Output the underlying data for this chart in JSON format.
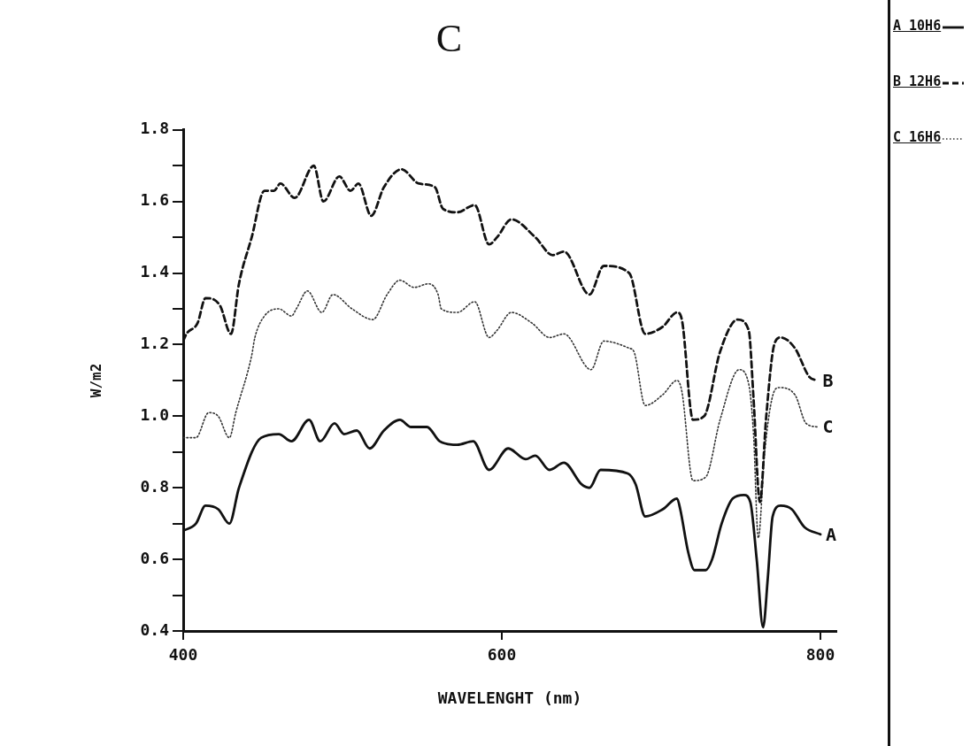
{
  "chart_data": {
    "type": "line",
    "title": "C",
    "xlabel": "WAVELENGHT (nm)",
    "ylabel": "W/m2",
    "xlim": [
      400,
      810
    ],
    "xticks": [
      400,
      600,
      800
    ],
    "ylim": [
      0.4,
      1.8
    ],
    "yticks": [
      {
        "value": 0.4,
        "label": "0.4"
      },
      {
        "value": 0.5,
        "label": null
      },
      {
        "value": 0.6,
        "label": "0.6"
      },
      {
        "value": 0.7,
        "label": null
      },
      {
        "value": 0.8,
        "label": "0.8"
      },
      {
        "value": 0.9,
        "label": null
      },
      {
        "value": 1.0,
        "label": "1.0"
      },
      {
        "value": 1.1,
        "label": null
      },
      {
        "value": 1.2,
        "label": "1.2"
      },
      {
        "value": 1.3,
        "label": null
      },
      {
        "value": 1.4,
        "label": "1.4"
      },
      {
        "value": 1.5,
        "label": null
      },
      {
        "value": 1.6,
        "label": "1.6"
      },
      {
        "value": 1.7,
        "label": null
      },
      {
        "value": 1.8,
        "label": "1.8"
      }
    ],
    "grid": false,
    "legend": "right",
    "marker": "none",
    "series": [
      {
        "name": "A 10H6",
        "color": "#111111",
        "line_style": "solid",
        "x": [
          400,
          408,
          414,
          422,
          429,
          435,
          449,
          460,
          468,
          479,
          486,
          495,
          501,
          509,
          517,
          526,
          536,
          543,
          553,
          561,
          572,
          582,
          592,
          604,
          615,
          621,
          630,
          639,
          650,
          655,
          662,
          679,
          684,
          690,
          701,
          710,
          712,
          717,
          721,
          728,
          732,
          738,
          745,
          752,
          756,
          760,
          764,
          767,
          770,
          775,
          782,
          790,
          800
        ],
        "values": [
          0.68,
          0.7,
          0.75,
          0.74,
          0.7,
          0.8,
          0.94,
          0.95,
          0.93,
          0.99,
          0.93,
          0.98,
          0.95,
          0.96,
          0.91,
          0.96,
          0.99,
          0.97,
          0.97,
          0.93,
          0.92,
          0.93,
          0.85,
          0.91,
          0.88,
          0.89,
          0.85,
          0.87,
          0.81,
          0.8,
          0.85,
          0.84,
          0.81,
          0.72,
          0.74,
          0.77,
          0.74,
          0.62,
          0.57,
          0.57,
          0.6,
          0.7,
          0.77,
          0.78,
          0.76,
          0.6,
          0.41,
          0.55,
          0.72,
          0.75,
          0.74,
          0.69,
          0.67
        ]
      },
      {
        "name": "B 12H6",
        "color": "#111111",
        "line_style": "dashed",
        "x": [
          400,
          402,
          409,
          414,
          423,
          430,
          435,
          443,
          451,
          457,
          461,
          470,
          482,
          488,
          498,
          505,
          510,
          518,
          526,
          537,
          548,
          558,
          563,
          572,
          583,
          592,
          597,
          606,
          621,
          632,
          639,
          655,
          664,
          680,
          690,
          701,
          710,
          713,
          720,
          727,
          737,
          748,
          755,
          758,
          762,
          766,
          771,
          775,
          784,
          793,
          798
        ],
        "values": [
          1.21,
          1.23,
          1.26,
          1.33,
          1.31,
          1.23,
          1.37,
          1.5,
          1.63,
          1.63,
          1.65,
          1.61,
          1.7,
          1.6,
          1.67,
          1.63,
          1.65,
          1.56,
          1.64,
          1.69,
          1.65,
          1.64,
          1.58,
          1.57,
          1.59,
          1.48,
          1.5,
          1.55,
          1.5,
          1.45,
          1.46,
          1.34,
          1.42,
          1.4,
          1.23,
          1.25,
          1.29,
          1.27,
          0.99,
          1.0,
          1.18,
          1.27,
          1.24,
          1.05,
          0.76,
          1.0,
          1.2,
          1.22,
          1.19,
          1.11,
          1.1
        ]
      },
      {
        "name": "C 16H6",
        "color": "#333333",
        "line_style": "dotted",
        "x": [
          400,
          408,
          416,
          422,
          429,
          433,
          443,
          445,
          451,
          460,
          468,
          471,
          478,
          487,
          494,
          506,
          519,
          528,
          536,
          545,
          554,
          560,
          562,
          572,
          583,
          592,
          597,
          606,
          619,
          630,
          639,
          656,
          664,
          680,
          683,
          690,
          701,
          710,
          713,
          720,
          728,
          737,
          749,
          755,
          758,
          761,
          765,
          771,
          774,
          784,
          791,
          798
        ],
        "values": [
          0.94,
          0.94,
          1.01,
          1.0,
          0.94,
          1.01,
          1.17,
          1.22,
          1.28,
          1.3,
          1.28,
          1.3,
          1.35,
          1.29,
          1.34,
          1.3,
          1.27,
          1.34,
          1.38,
          1.36,
          1.37,
          1.34,
          1.3,
          1.29,
          1.32,
          1.22,
          1.24,
          1.29,
          1.26,
          1.22,
          1.23,
          1.13,
          1.21,
          1.19,
          1.18,
          1.03,
          1.06,
          1.1,
          1.07,
          0.82,
          0.83,
          0.99,
          1.13,
          1.09,
          0.95,
          0.66,
          0.9,
          1.07,
          1.08,
          1.06,
          0.98,
          0.97
        ]
      }
    ],
    "annotations": [
      "A",
      "B",
      "C"
    ]
  }
}
